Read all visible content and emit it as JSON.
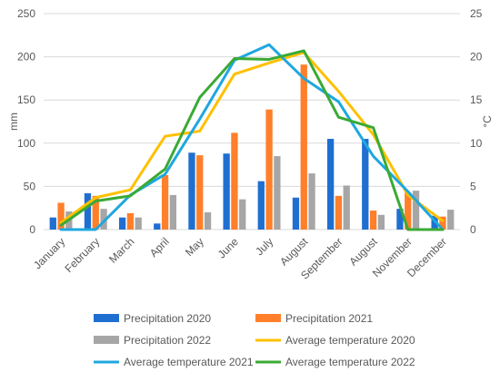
{
  "chart_data": {
    "type": "bar+line",
    "categories": [
      "January",
      "February",
      "March",
      "April",
      "May",
      "June",
      "July",
      "August",
      "September",
      "August",
      "November",
      "December"
    ],
    "bar_series": [
      {
        "name": "Precipitation 2020",
        "color": "#1f6fd1",
        "values": [
          14,
          42,
          14,
          7,
          89,
          88,
          56,
          37,
          105,
          105,
          24,
          16
        ]
      },
      {
        "name": "Precipitation 2021",
        "color": "#ff7f2a",
        "values": [
          31,
          39,
          19,
          63,
          86,
          112,
          139,
          191,
          39,
          22,
          43,
          15
        ]
      },
      {
        "name": "Precipitation 2022",
        "color": "#a6a6a6",
        "values": [
          21,
          24,
          14,
          40,
          20,
          35,
          85,
          65,
          51,
          17,
          45,
          23
        ]
      }
    ],
    "line_series": [
      {
        "name": "Average temperature 2020",
        "color": "#ffc000",
        "values": [
          0.8,
          3.7,
          4.6,
          10.8,
          11.4,
          18.0,
          19.3,
          20.5,
          16.0,
          11.0,
          4.0,
          1.0
        ]
      },
      {
        "name": "Average temperature 2021",
        "color": "#1fa7e0",
        "values": [
          0,
          0,
          4.0,
          6.4,
          12.8,
          19.6,
          21.4,
          17.5,
          14.8,
          8.5,
          4.4,
          0
        ]
      },
      {
        "name": "Average temperature 2022",
        "color": "#3aaa35",
        "values": [
          0.5,
          3.3,
          3.9,
          7.0,
          15.3,
          19.8,
          19.7,
          20.7,
          13.0,
          11.8,
          0,
          0
        ]
      }
    ],
    "ylabel_left": "mm",
    "ylabel_right": "°C",
    "ylim_left": [
      0,
      250
    ],
    "ylim_right": [
      0,
      25
    ],
    "yticks_left": [
      "0",
      "50",
      "100",
      "150",
      "200",
      "250"
    ],
    "yticks_right": [
      "0",
      "5",
      "10",
      "15",
      "20",
      "25"
    ],
    "grid": true,
    "legend_position": "bottom"
  }
}
